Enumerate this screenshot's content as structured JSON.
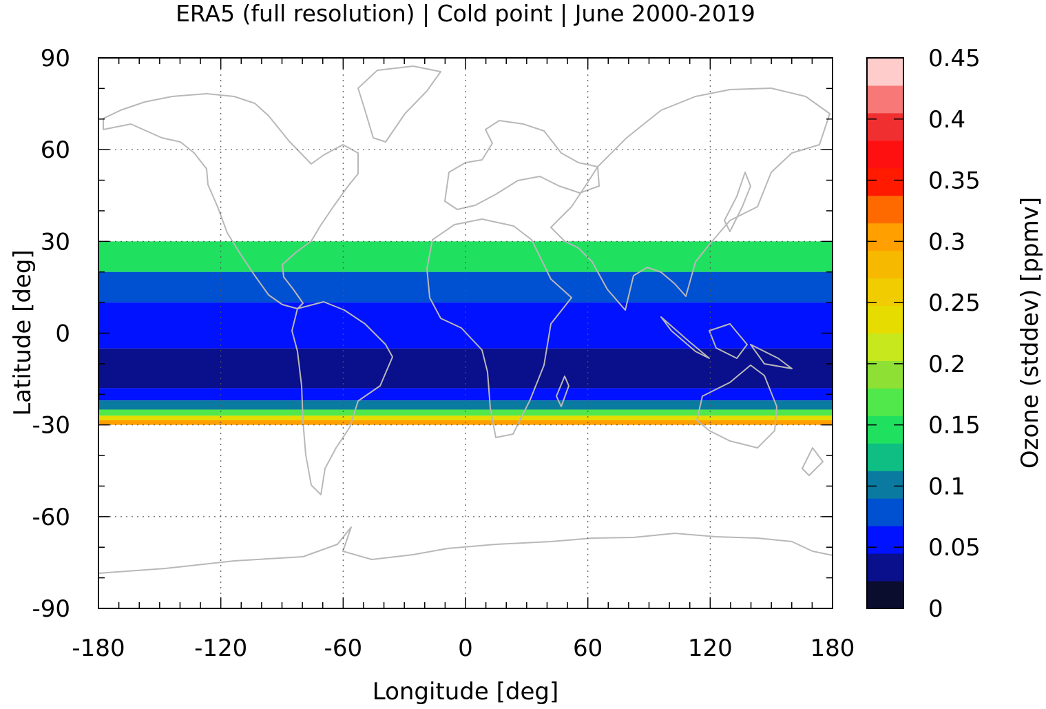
{
  "chart_data": {
    "type": "heatmap",
    "title": "ERA5 (full resolution) | Cold point | June 2000-2019",
    "xlabel": "Longitude [deg]",
    "ylabel": "Latitude [deg]",
    "colorbar_label": "Ozone (stddev) [ppmv]",
    "xlim": [
      -180,
      180
    ],
    "ylim": [
      -90,
      90
    ],
    "data_extent_lat": [
      -30,
      30
    ],
    "x_ticks": [
      "-180",
      "-120",
      "-60",
      "0",
      "60",
      "120",
      "180"
    ],
    "x_tick_values": [
      -180,
      -120,
      -60,
      0,
      60,
      120,
      180
    ],
    "y_ticks": [
      "90",
      "60",
      "30",
      "0",
      "-30",
      "-60",
      "-90"
    ],
    "y_tick_values": [
      90,
      60,
      30,
      0,
      -30,
      -60,
      -90
    ],
    "colorbar_ticks": [
      "0.45",
      "0.4",
      "0.35",
      "0.3",
      "0.25",
      "0.2",
      "0.15",
      "0.1",
      "0.05",
      "0"
    ],
    "colorbar_tick_values": [
      0.45,
      0.4,
      0.35,
      0.3,
      0.25,
      0.2,
      0.15,
      0.1,
      0.05,
      0
    ],
    "colorbar_range": [
      0,
      0.45
    ],
    "colorbar_levels": [
      "#0a0d2e",
      "#0a0f8c",
      "#0012ff",
      "#0050d2",
      "#0a7aa0",
      "#0ebe82",
      "#20e060",
      "#50e84a",
      "#8ee034",
      "#c8e81e",
      "#e6dc00",
      "#f0cc00",
      "#f7b800",
      "#ffa000",
      "#ff6a00",
      "#ff1a00",
      "#ff1010",
      "#f03030",
      "#f87878",
      "#ffcccc"
    ],
    "grid": true,
    "grid_x": [
      -120,
      -60,
      0,
      60,
      120
    ],
    "grid_y": [
      60,
      30,
      -30,
      -60
    ],
    "coastline_color": "#b8b8b8",
    "bands": [
      {
        "lat": [
          20,
          30
        ],
        "value": 0.14
      },
      {
        "lat": [
          10,
          20
        ],
        "value": 0.09
      },
      {
        "lat": [
          -5,
          10
        ],
        "value": 0.06
      },
      {
        "lat": [
          -18,
          -5
        ],
        "value": 0.03
      },
      {
        "lat": [
          -22,
          -18
        ],
        "value": 0.06
      },
      {
        "lat": [
          -25,
          -22
        ],
        "value": 0.1
      },
      {
        "lat": [
          -27,
          -25
        ],
        "value": 0.17
      },
      {
        "lat": [
          -28.5,
          -27
        ],
        "value": 0.24
      },
      {
        "lat": [
          -30,
          -28.5
        ],
        "value": 0.3
      }
    ]
  }
}
